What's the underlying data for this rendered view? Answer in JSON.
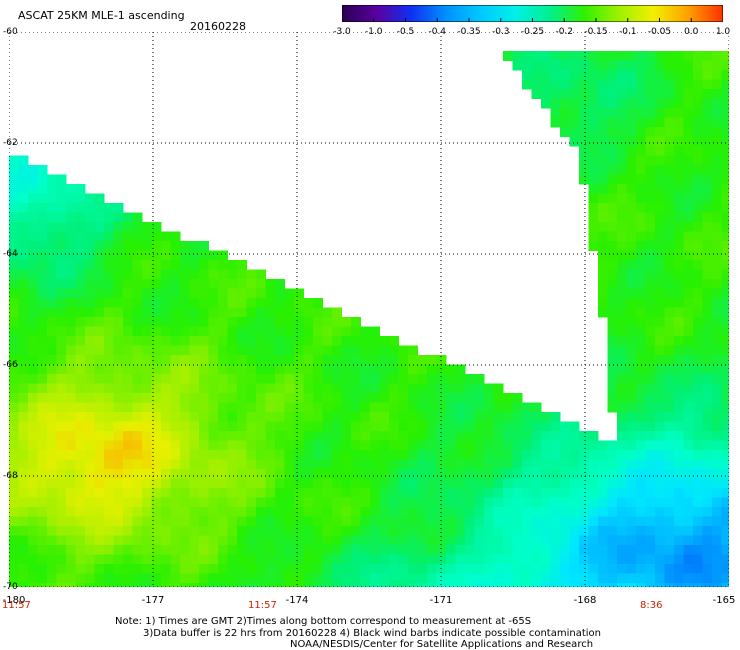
{
  "header": {
    "product": "ASCAT 25KM MLE-1 ascending",
    "date": "20160228"
  },
  "colorbar": {
    "ticks": [
      "-3.0",
      "-1.0",
      "-0.5",
      "-0.4",
      "-0.35",
      "-0.3",
      "-0.25",
      "-0.2",
      "-0.15",
      "-0.1",
      "-0.05",
      "0.0",
      "1.0"
    ],
    "colors": [
      "#2a0050",
      "#5a00a0",
      "#1030f0",
      "#0090ff",
      "#00c8ff",
      "#00f0e8",
      "#00f090",
      "#30f000",
      "#a0f000",
      "#f0f000",
      "#ffa000",
      "#ff3000"
    ]
  },
  "axes": {
    "lat_ticks": [
      "-60",
      "-62",
      "-64",
      "-66",
      "-68",
      "-70"
    ],
    "lon_ticks": [
      "-180",
      "-177",
      "-174",
      "-171",
      "-168",
      "-165"
    ],
    "lat_range": [
      -70,
      -60
    ],
    "lon_range": [
      -180,
      -165
    ]
  },
  "times": {
    "left": "11:57",
    "middle": "11:57",
    "right": "8:36"
  },
  "notes": {
    "line1": "Note: 1) Times are GMT 2)Times along bottom correspond to measurement at -65S",
    "line2": "3)Data buffer is 22 hrs from 20160228 4) Black wind barbs indicate possible contamination",
    "line3": "NOAA/NESDIS/Center for Satellite Applications and Research"
  }
}
